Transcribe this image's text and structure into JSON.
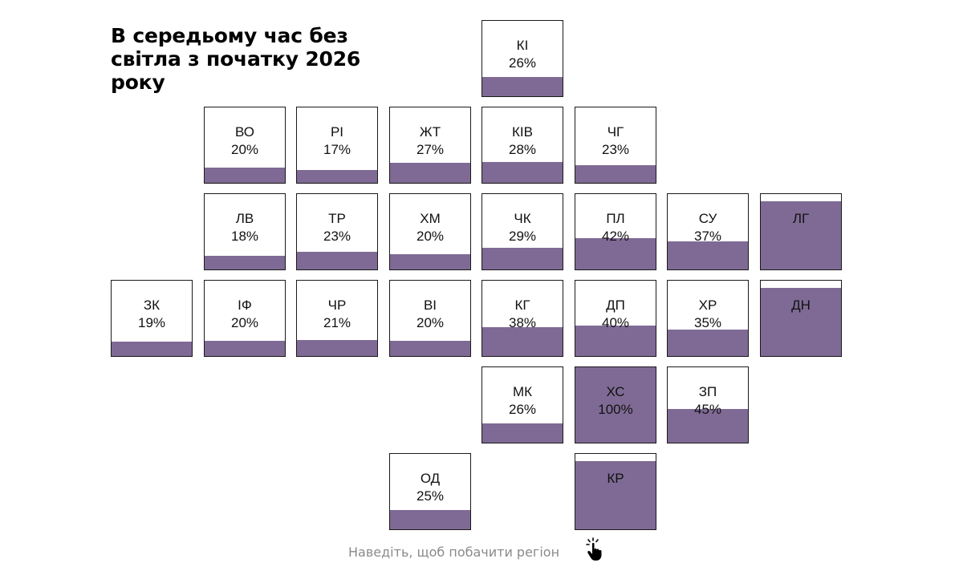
{
  "title": "В середьому час без світла з початку 2026 року",
  "hint": "Наведіть, щоб побачити регіон",
  "colors": {
    "fill": "#7f6a95",
    "border": "#1a1a1a"
  },
  "chart_data": {
    "type": "tile-grid-map",
    "title": "В середьому час без світла з початку 2026 року",
    "unit": "%",
    "regions": [
      {
        "code": "КІ",
        "value": 26,
        "label": "26%",
        "row": 0,
        "col": 4
      },
      {
        "code": "ВО",
        "value": 20,
        "label": "20%",
        "row": 1,
        "col": 1
      },
      {
        "code": "РІ",
        "value": 17,
        "label": "17%",
        "row": 1,
        "col": 2
      },
      {
        "code": "ЖТ",
        "value": 27,
        "label": "27%",
        "row": 1,
        "col": 3
      },
      {
        "code": "КІВ",
        "value": 28,
        "label": "28%",
        "row": 1,
        "col": 4
      },
      {
        "code": "ЧГ",
        "value": 23,
        "label": "23%",
        "row": 1,
        "col": 5
      },
      {
        "code": "ЛВ",
        "value": 18,
        "label": "18%",
        "row": 2,
        "col": 1
      },
      {
        "code": "ТР",
        "value": 23,
        "label": "23%",
        "row": 2,
        "col": 2
      },
      {
        "code": "ХМ",
        "value": 20,
        "label": "20%",
        "row": 2,
        "col": 3
      },
      {
        "code": "ЧК",
        "value": 29,
        "label": "29%",
        "row": 2,
        "col": 4
      },
      {
        "code": "ПЛ",
        "value": 42,
        "label": "42%",
        "row": 2,
        "col": 5
      },
      {
        "code": "СУ",
        "value": 37,
        "label": "37%",
        "row": 2,
        "col": 6
      },
      {
        "code": "ЛГ",
        "value": 90,
        "label": "",
        "row": 2,
        "col": 7
      },
      {
        "code": "ЗК",
        "value": 19,
        "label": "19%",
        "row": 3,
        "col": 0
      },
      {
        "code": "ІФ",
        "value": 20,
        "label": "20%",
        "row": 3,
        "col": 1
      },
      {
        "code": "ЧР",
        "value": 21,
        "label": "21%",
        "row": 3,
        "col": 2
      },
      {
        "code": "ВІ",
        "value": 20,
        "label": "20%",
        "row": 3,
        "col": 3
      },
      {
        "code": "КГ",
        "value": 38,
        "label": "38%",
        "row": 3,
        "col": 4
      },
      {
        "code": "ДП",
        "value": 40,
        "label": "40%",
        "row": 3,
        "col": 5
      },
      {
        "code": "ХР",
        "value": 35,
        "label": "35%",
        "row": 3,
        "col": 6
      },
      {
        "code": "ДН",
        "value": 90,
        "label": "",
        "row": 3,
        "col": 7
      },
      {
        "code": "МК",
        "value": 26,
        "label": "26%",
        "row": 4,
        "col": 4
      },
      {
        "code": "ХС",
        "value": 100,
        "label": "100%",
        "row": 4,
        "col": 5
      },
      {
        "code": "ЗП",
        "value": 45,
        "label": "45%",
        "row": 4,
        "col": 6
      },
      {
        "code": "ОД",
        "value": 25,
        "label": "25%",
        "row": 5,
        "col": 3
      },
      {
        "code": "КР",
        "value": 90,
        "label": "",
        "row": 5,
        "col": 5
      }
    ]
  }
}
